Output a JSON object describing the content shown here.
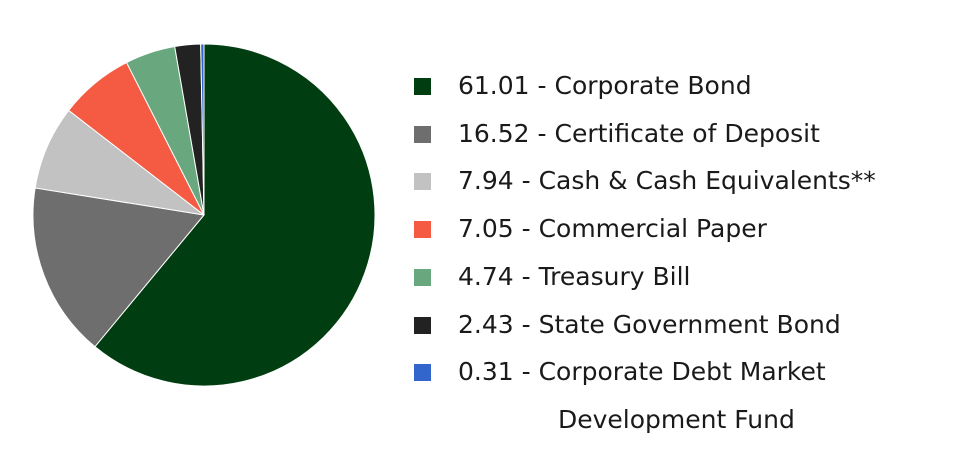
{
  "chart_data": {
    "type": "pie",
    "categories": [
      "61.01 - Corporate Bond",
      "16.52 - Certificate of Deposit",
      "7.94 - Cash & Cash Equivalents**",
      "7.05 - Commercial Paper",
      "4.74 - Treasury Bill",
      "2.43 - State Government Bond",
      "0.31 - Corporate Debt Market Development Fund"
    ],
    "values": [
      61.01,
      16.52,
      7.94,
      7.05,
      4.74,
      2.43,
      0.31
    ],
    "colors": [
      "#003d10",
      "#6e6e6e",
      "#c2c2c2",
      "#f55b42",
      "#69a87f",
      "#222222",
      "#3366cc"
    ],
    "legend": "right"
  }
}
